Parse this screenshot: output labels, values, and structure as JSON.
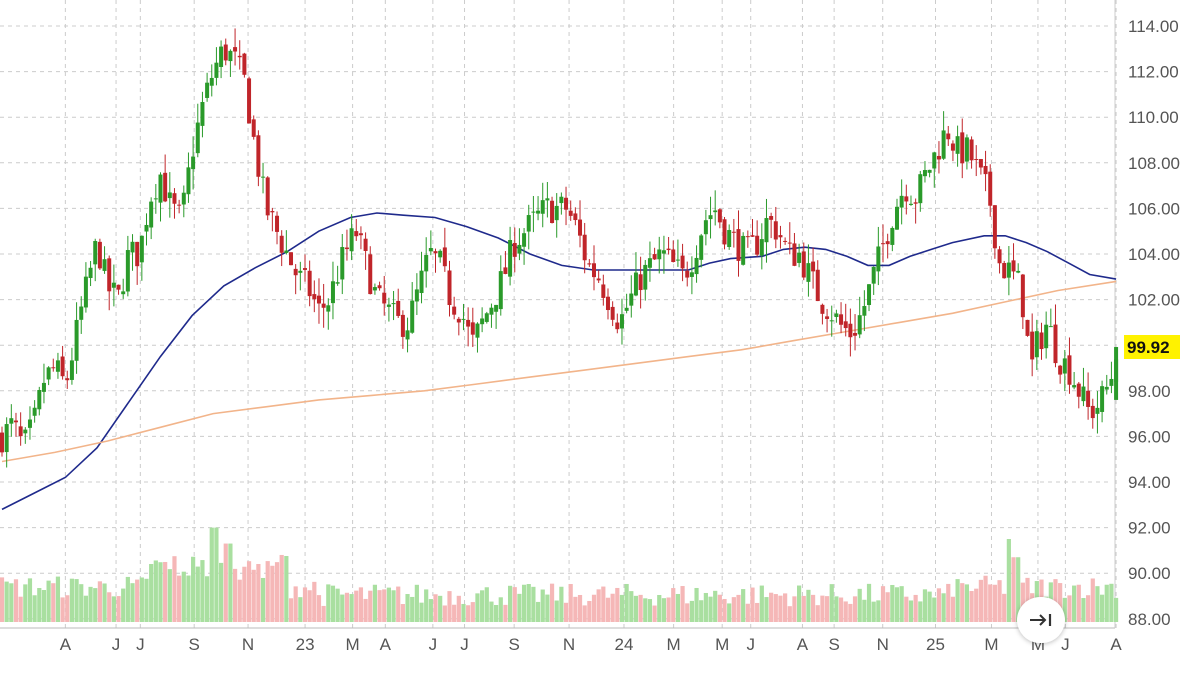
{
  "chart_data": {
    "type": "candlestick",
    "y_ticks": [
      "114.00",
      "112.00",
      "110.00",
      "108.00",
      "106.00",
      "104.00",
      "102.00",
      "100.00",
      "98.00",
      "96.00",
      "94.00",
      "92.00",
      "90.00",
      "88.00"
    ],
    "y_tick_values": [
      114,
      112,
      110,
      108,
      106,
      104,
      102,
      100,
      98,
      96,
      94,
      92,
      90,
      88
    ],
    "ylim": [
      87.3,
      115.5
    ],
    "x_labels": [
      {
        "label": "A",
        "t": 0.06
      },
      {
        "label": "J",
        "t": 0.108
      },
      {
        "label": "J",
        "t": 0.131
      },
      {
        "label": "S",
        "t": 0.182
      },
      {
        "label": "N",
        "t": 0.233
      },
      {
        "label": "23",
        "t": 0.287
      },
      {
        "label": "M",
        "t": 0.332
      },
      {
        "label": "A",
        "t": 0.363
      },
      {
        "label": "J",
        "t": 0.408
      },
      {
        "label": "J",
        "t": 0.438
      },
      {
        "label": "S",
        "t": 0.485
      },
      {
        "label": "N",
        "t": 0.537
      },
      {
        "label": "24",
        "t": 0.589
      },
      {
        "label": "M",
        "t": 0.636
      },
      {
        "label": "M",
        "t": 0.682
      },
      {
        "label": "J",
        "t": 0.709
      },
      {
        "label": "A",
        "t": 0.758
      },
      {
        "label": "S",
        "t": 0.788
      },
      {
        "label": "N",
        "t": 0.834
      },
      {
        "label": "25",
        "t": 0.884
      },
      {
        "label": "M",
        "t": 0.937
      },
      {
        "label": "M",
        "t": 0.981
      },
      {
        "label": "J",
        "t": 1.007
      },
      {
        "label": "A",
        "t": 1.055
      }
    ],
    "last_price": "99.92",
    "last_price_value": 99.92,
    "price_path": [
      [
        0.0,
        96.0
      ],
      [
        0.01,
        96.5
      ],
      [
        0.02,
        95.5
      ],
      [
        0.03,
        96.5
      ],
      [
        0.04,
        98.5
      ],
      [
        0.05,
        99.0
      ],
      [
        0.06,
        98.2
      ],
      [
        0.075,
        101.5
      ],
      [
        0.09,
        104.5
      ],
      [
        0.1,
        102.5
      ],
      [
        0.11,
        102.0
      ],
      [
        0.12,
        104.0
      ],
      [
        0.13,
        104.0
      ],
      [
        0.14,
        106.5
      ],
      [
        0.15,
        107.5
      ],
      [
        0.16,
        106.0
      ],
      [
        0.17,
        105.5
      ],
      [
        0.18,
        108.5
      ],
      [
        0.19,
        110.5
      ],
      [
        0.2,
        112.0
      ],
      [
        0.21,
        113.0
      ],
      [
        0.22,
        112.5
      ],
      [
        0.23,
        111.5
      ],
      [
        0.24,
        108.5
      ],
      [
        0.25,
        106.0
      ],
      [
        0.26,
        105.0
      ],
      [
        0.27,
        104.0
      ],
      [
        0.28,
        103.0
      ],
      [
        0.29,
        102.5
      ],
      [
        0.3,
        101.5
      ],
      [
        0.31,
        102.0
      ],
      [
        0.32,
        103.5
      ],
      [
        0.335,
        105.0
      ],
      [
        0.345,
        103.5
      ],
      [
        0.355,
        102.0
      ],
      [
        0.365,
        101.5
      ],
      [
        0.375,
        101.0
      ],
      [
        0.385,
        101.0
      ],
      [
        0.395,
        102.5
      ],
      [
        0.405,
        104.0
      ],
      [
        0.415,
        103.5
      ],
      [
        0.425,
        102.0
      ],
      [
        0.435,
        101.5
      ],
      [
        0.445,
        100.0
      ],
      [
        0.455,
        101.0
      ],
      [
        0.465,
        102.0
      ],
      [
        0.475,
        103.0
      ],
      [
        0.485,
        104.5
      ],
      [
        0.495,
        105.0
      ],
      [
        0.505,
        105.5
      ],
      [
        0.515,
        106.0
      ],
      [
        0.525,
        106.0
      ],
      [
        0.535,
        106.0
      ],
      [
        0.545,
        105.0
      ],
      [
        0.555,
        103.5
      ],
      [
        0.565,
        103.0
      ],
      [
        0.575,
        102.0
      ],
      [
        0.585,
        101.0
      ],
      [
        0.595,
        102.0
      ],
      [
        0.605,
        103.0
      ],
      [
        0.615,
        103.5
      ],
      [
        0.625,
        104.0
      ],
      [
        0.635,
        103.5
      ],
      [
        0.645,
        103.0
      ],
      [
        0.655,
        104.0
      ],
      [
        0.665,
        105.5
      ],
      [
        0.675,
        106.0
      ],
      [
        0.685,
        105.0
      ],
      [
        0.695,
        104.5
      ],
      [
        0.705,
        104.0
      ],
      [
        0.715,
        104.5
      ],
      [
        0.725,
        105.5
      ],
      [
        0.735,
        105.0
      ],
      [
        0.745,
        104.0
      ],
      [
        0.755,
        104.0
      ],
      [
        0.765,
        103.0
      ],
      [
        0.775,
        102.0
      ],
      [
        0.785,
        101.5
      ],
      [
        0.795,
        100.8
      ],
      [
        0.805,
        100.5
      ],
      [
        0.815,
        101.5
      ],
      [
        0.825,
        103.0
      ],
      [
        0.835,
        104.5
      ],
      [
        0.845,
        106.0
      ],
      [
        0.855,
        107.0
      ],
      [
        0.865,
        106.5
      ],
      [
        0.875,
        107.5
      ],
      [
        0.885,
        108.5
      ],
      [
        0.895,
        109.5
      ],
      [
        0.905,
        108.5
      ],
      [
        0.915,
        108.5
      ],
      [
        0.925,
        107.5
      ],
      [
        0.935,
        106.5
      ],
      [
        0.94,
        105.0
      ],
      [
        0.945,
        103.5
      ],
      [
        0.955,
        103.2
      ],
      [
        0.965,
        102.5
      ],
      [
        0.97,
        100.5
      ],
      [
        0.975,
        99.0
      ],
      [
        0.98,
        100.0
      ],
      [
        0.99,
        101.0
      ],
      [
        1.0,
        99.5
      ],
      [
        1.01,
        99.0
      ],
      [
        1.02,
        98.0
      ],
      [
        1.03,
        97.0
      ],
      [
        1.04,
        97.5
      ],
      [
        1.05,
        98.5
      ],
      [
        1.055,
        99.92
      ]
    ],
    "series": [
      {
        "name": "",
        "color": "#1f2a8c",
        "points": [
          [
            0.0,
            92.8
          ],
          [
            0.03,
            93.5
          ],
          [
            0.06,
            94.2
          ],
          [
            0.09,
            95.5
          ],
          [
            0.12,
            97.5
          ],
          [
            0.15,
            99.5
          ],
          [
            0.18,
            101.3
          ],
          [
            0.21,
            102.6
          ],
          [
            0.24,
            103.4
          ],
          [
            0.27,
            104.1
          ],
          [
            0.3,
            105.0
          ],
          [
            0.33,
            105.6
          ],
          [
            0.355,
            105.8
          ],
          [
            0.38,
            105.7
          ],
          [
            0.41,
            105.6
          ],
          [
            0.44,
            105.2
          ],
          [
            0.47,
            104.7
          ],
          [
            0.5,
            104.0
          ],
          [
            0.53,
            103.5
          ],
          [
            0.56,
            103.3
          ],
          [
            0.59,
            103.3
          ],
          [
            0.62,
            103.3
          ],
          [
            0.65,
            103.3
          ],
          [
            0.67,
            103.6
          ],
          [
            0.69,
            103.8
          ],
          [
            0.72,
            103.9
          ],
          [
            0.74,
            104.2
          ],
          [
            0.76,
            104.3
          ],
          [
            0.78,
            104.2
          ],
          [
            0.8,
            103.9
          ],
          [
            0.82,
            103.5
          ],
          [
            0.84,
            103.5
          ],
          [
            0.86,
            103.9
          ],
          [
            0.88,
            104.2
          ],
          [
            0.9,
            104.5
          ],
          [
            0.93,
            104.8
          ],
          [
            0.95,
            104.8
          ],
          [
            0.97,
            104.5
          ],
          [
            0.99,
            104.1
          ],
          [
            1.01,
            103.6
          ],
          [
            1.03,
            103.1
          ],
          [
            1.055,
            102.9
          ]
        ]
      },
      {
        "name": "",
        "color": "#f2b48a",
        "points": [
          [
            0.0,
            94.9
          ],
          [
            0.05,
            95.3
          ],
          [
            0.1,
            95.8
          ],
          [
            0.15,
            96.4
          ],
          [
            0.2,
            97.0
          ],
          [
            0.25,
            97.3
          ],
          [
            0.3,
            97.6
          ],
          [
            0.35,
            97.8
          ],
          [
            0.4,
            98.0
          ],
          [
            0.45,
            98.3
          ],
          [
            0.5,
            98.6
          ],
          [
            0.55,
            98.9
          ],
          [
            0.6,
            99.2
          ],
          [
            0.65,
            99.5
          ],
          [
            0.7,
            99.8
          ],
          [
            0.75,
            100.2
          ],
          [
            0.8,
            100.6
          ],
          [
            0.85,
            101.0
          ],
          [
            0.9,
            101.4
          ],
          [
            0.95,
            101.9
          ],
          [
            1.0,
            102.4
          ],
          [
            1.055,
            102.8
          ]
        ]
      }
    ],
    "volume_max": 92.0,
    "volume_base": 88.3,
    "volume_spikes": [
      [
        0.2,
        92.0
      ],
      [
        0.215,
        91.3
      ],
      [
        0.265,
        90.8
      ],
      [
        0.955,
        91.5
      ],
      [
        0.96,
        90.7
      ]
    ]
  },
  "icons": {
    "jump_to_latest": "arrow-right-to-bar-icon"
  },
  "colors": {
    "up": "#2a9a2a",
    "down": "#c0252a",
    "up_volume": "#a9dfa0",
    "down_volume": "#f5b7b7",
    "grid": "#cccccc",
    "price_tag": "#fff200",
    "axis_text": "#555555"
  }
}
